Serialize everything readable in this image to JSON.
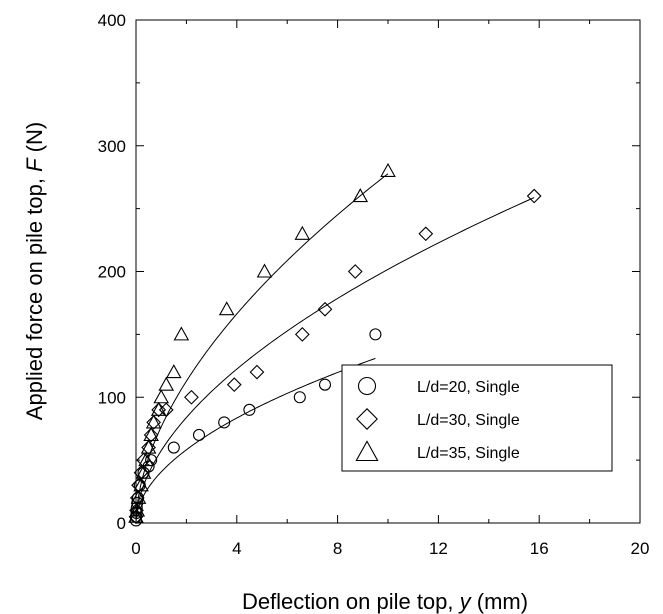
{
  "chart_data": {
    "type": "scatter",
    "xlabel": "Deflection on pile top, y (mm)",
    "xlabel_parts": [
      "Deflection on pile top, ",
      "y",
      " (mm)"
    ],
    "ylabel": "Applied force on pile top, F (N)",
    "ylabel_parts": [
      "Applied force on pile top, ",
      "F",
      " (N)"
    ],
    "xlim": [
      0,
      20
    ],
    "ylim": [
      0,
      400
    ],
    "xticks": [
      0,
      4,
      8,
      12,
      16,
      20
    ],
    "yticks": [
      0,
      100,
      200,
      300,
      400
    ],
    "grid": false,
    "legend_position": "lower-right",
    "series": [
      {
        "name": "L/d=20, Single",
        "marker": "circle",
        "points": [
          [
            0,
            2
          ],
          [
            0,
            5
          ],
          [
            0.02,
            8
          ],
          [
            0.03,
            12
          ],
          [
            0.05,
            16
          ],
          [
            0.08,
            20
          ],
          [
            0.15,
            30
          ],
          [
            0.3,
            40
          ],
          [
            0.5,
            45
          ],
          [
            0.6,
            50
          ],
          [
            1.5,
            60
          ],
          [
            2.5,
            70
          ],
          [
            3.5,
            80
          ],
          [
            4.5,
            90
          ],
          [
            6.5,
            100
          ],
          [
            7.5,
            110
          ],
          [
            8.5,
            120
          ],
          [
            9.5,
            150
          ]
        ],
        "fit": {
          "a": 40.6,
          "b": 0.52,
          "x_end": 9.5
        }
      },
      {
        "name": "L/d=30, Single",
        "marker": "diamond",
        "points": [
          [
            0,
            5
          ],
          [
            0.02,
            10
          ],
          [
            0.05,
            20
          ],
          [
            0.1,
            30
          ],
          [
            0.2,
            40
          ],
          [
            0.3,
            50
          ],
          [
            0.5,
            60
          ],
          [
            0.6,
            70
          ],
          [
            0.7,
            80
          ],
          [
            0.9,
            90
          ],
          [
            1.2,
            90
          ],
          [
            2.2,
            100
          ],
          [
            3.9,
            110
          ],
          [
            4.8,
            120
          ],
          [
            6.6,
            150
          ],
          [
            7.5,
            170
          ],
          [
            8.7,
            200
          ],
          [
            11.5,
            230
          ],
          [
            15.8,
            260
          ]
        ],
        "fit": {
          "a": 57.5,
          "b": 0.545,
          "x_end": 15.8
        }
      },
      {
        "name": "L/d=35, Single",
        "marker": "triangle",
        "points": [
          [
            0,
            5
          ],
          [
            0.05,
            10
          ],
          [
            0.1,
            20
          ],
          [
            0.2,
            30
          ],
          [
            0.3,
            40
          ],
          [
            0.4,
            50
          ],
          [
            0.5,
            60
          ],
          [
            0.6,
            70
          ],
          [
            0.7,
            80
          ],
          [
            0.9,
            90
          ],
          [
            1.0,
            100
          ],
          [
            1.2,
            110
          ],
          [
            1.5,
            120
          ],
          [
            1.8,
            150
          ],
          [
            3.6,
            170
          ],
          [
            5.1,
            200
          ],
          [
            6.6,
            230
          ],
          [
            8.9,
            260
          ],
          [
            10,
            280
          ]
        ],
        "fit": {
          "a": 76.5,
          "b": 0.56,
          "x_end": 10
        }
      }
    ]
  }
}
